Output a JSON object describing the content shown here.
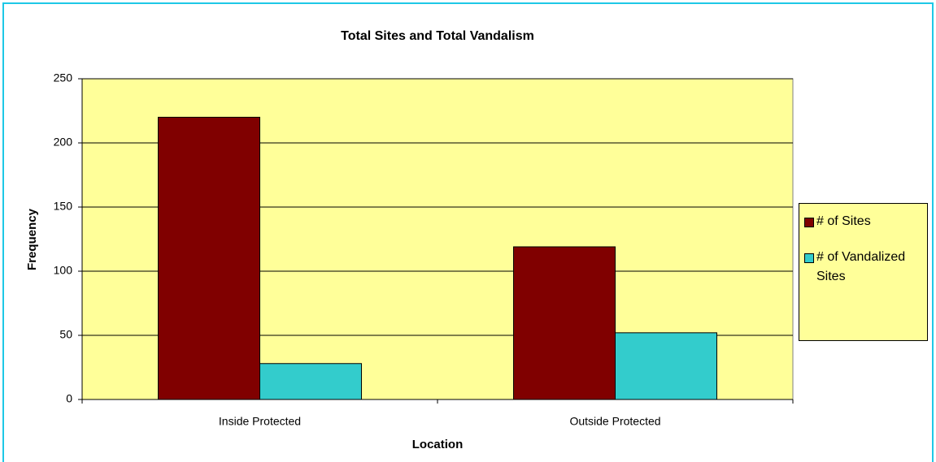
{
  "chart_data": {
    "type": "bar",
    "title": "Total Sites and Total Vandalism",
    "x_label": "Location",
    "y_label": "Frequency",
    "categories": [
      "Inside Protected",
      "Outside Protected"
    ],
    "series": [
      {
        "name": "# of Sites",
        "color": "#800000",
        "values": [
          220,
          119
        ]
      },
      {
        "name": "# of Vandalized Sites",
        "color": "#33cccc",
        "values": [
          28,
          52
        ]
      }
    ],
    "ylim": [
      0,
      250
    ],
    "yticks": [
      0,
      50,
      100,
      150,
      200,
      250
    ],
    "grid": true,
    "legend": "right"
  }
}
